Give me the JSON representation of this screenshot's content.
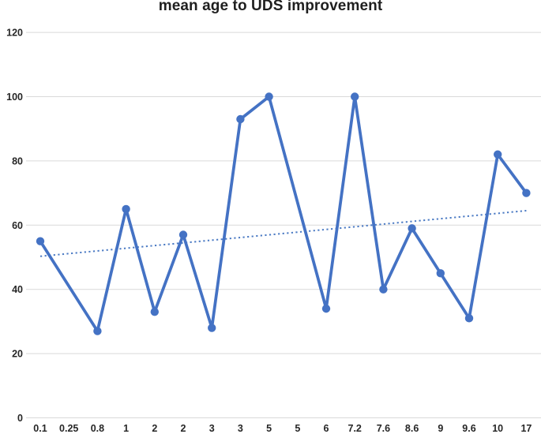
{
  "chart_data": {
    "type": "line",
    "title": "mean age to UDS improvement",
    "categories": [
      "0.1",
      "0.25",
      "0.8",
      "1",
      "2",
      "2",
      "3",
      "3",
      "5",
      "5",
      "6",
      "7.2",
      "7.6",
      "8.6",
      "9",
      "9.6",
      "10",
      "17"
    ],
    "series": [
      {
        "name": "mean age to UDS improvement",
        "values": [
          55,
          null,
          27,
          65,
          33,
          57,
          28,
          93,
          100,
          null,
          34,
          100,
          40,
          59,
          45,
          31,
          82,
          70
        ],
        "note": "markers shown only at non-null points; line connects across blank categories 0.25 and second 5"
      }
    ],
    "trendline": {
      "type": "linear",
      "start_value": 50.3,
      "end_value": 64.5,
      "style": "dotted"
    },
    "xlabel": "",
    "ylabel": "",
    "ylim": [
      0,
      120
    ],
    "yticks": [
      0,
      20,
      40,
      60,
      80,
      100,
      120
    ],
    "grid": "horizontal",
    "legend_position": "none",
    "colors": {
      "series": "#4472C4",
      "marker": "#4472C4",
      "trendline": "#4C7BC4",
      "gridline": "#D9D9D9",
      "title": "#1F1F1F",
      "tick_label": "#262626",
      "background": "#FFFFFF"
    }
  }
}
